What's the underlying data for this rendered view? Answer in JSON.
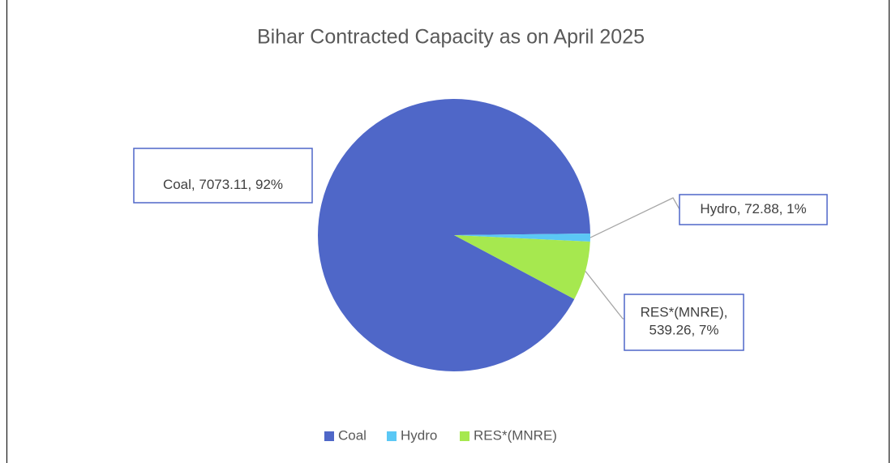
{
  "chart_data": {
    "type": "pie",
    "title": "Bihar Contracted Capacity as on April 2025",
    "categories": [
      "Coal",
      "Hydro",
      "RES*(MNRE)"
    ],
    "values": [
      7073.11,
      72.88,
      539.26
    ],
    "value_labels": [
      "Coal, 7073.11, 92%",
      "Hydro, 72.88, 1%",
      "RES*(MNRE), 539.26, 7%"
    ],
    "colors": [
      "#4f67c8",
      "#5bc8f5",
      "#a6e84f"
    ],
    "legend": "bottom"
  }
}
